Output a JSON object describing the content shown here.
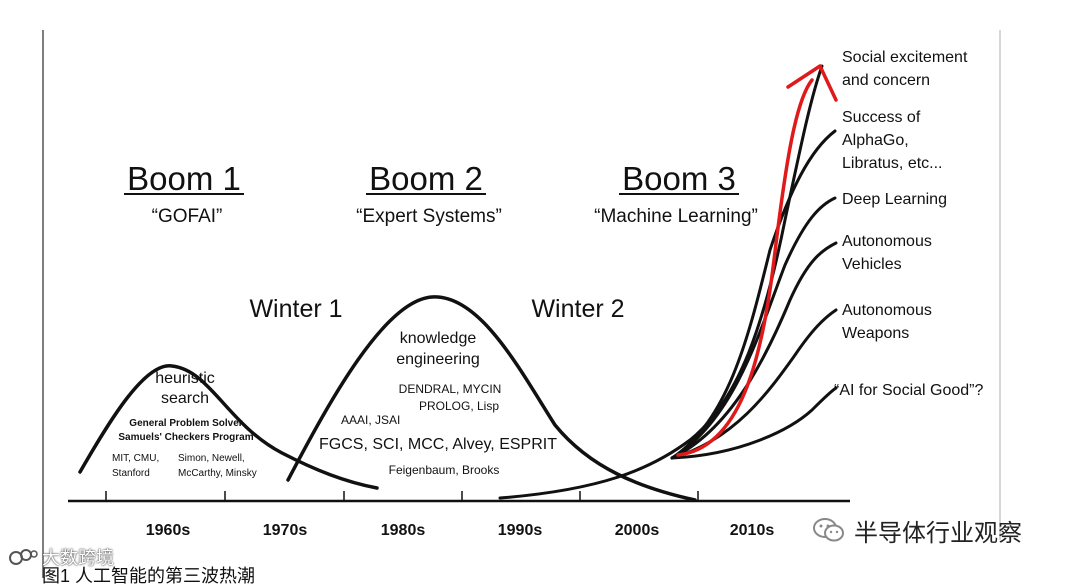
{
  "booms": [
    {
      "title": "Boom 1",
      "subtitle": "“GOFAI”"
    },
    {
      "title": "Boom 2",
      "subtitle": "“Expert Systems”"
    },
    {
      "title": "Boom 3",
      "subtitle": "“Machine Learning”"
    }
  ],
  "winters": [
    "Winter 1",
    "Winter 2"
  ],
  "boom1_notes": {
    "heuristic_1": "heuristic",
    "heuristic_2": "search",
    "gps": "General Problem Solver",
    "samuel": "Samuels' Checkers Program",
    "mit_1": "MIT, CMU,",
    "mit_2": "Stanford",
    "simon_1": "Simon, Newell,",
    "simon_2": "McCarthy, Minsky"
  },
  "boom2_notes": {
    "ke_1": "knowledge",
    "ke_2": "engineering",
    "dendral": "DENDRAL, MYCIN",
    "prolog": "PROLOG, Lisp",
    "aaai": "AAAI, JSAI",
    "fgcs": "FGCS, SCI, MCC, Alvey, ESPRIT",
    "feigenbaum": "Feigenbaum, Brooks"
  },
  "decades": [
    "1960s",
    "1970s",
    "1980s",
    "1990s",
    "2000s",
    "2010s"
  ],
  "events": [
    {
      "l1": "Social excitement",
      "l2": "and concern"
    },
    {
      "l1": "Success of",
      "l2": "AlphaGo,",
      "l3": "Libratus, etc..."
    },
    {
      "l1": "Deep Learning"
    },
    {
      "l1": "Autonomous",
      "l2": "Vehicles"
    },
    {
      "l1": "Autonomous",
      "l2": "Weapons"
    },
    {
      "l1": "“AI for Social Good”?"
    }
  ],
  "watermark_right": "半导体行业观察",
  "watermark_left": "大数跨境",
  "caption": "图1 人工智能的第三波热潮",
  "colors": {
    "ink": "#111111",
    "excitement_curve": "#e0191b",
    "frame": "#c8c8c8"
  }
}
